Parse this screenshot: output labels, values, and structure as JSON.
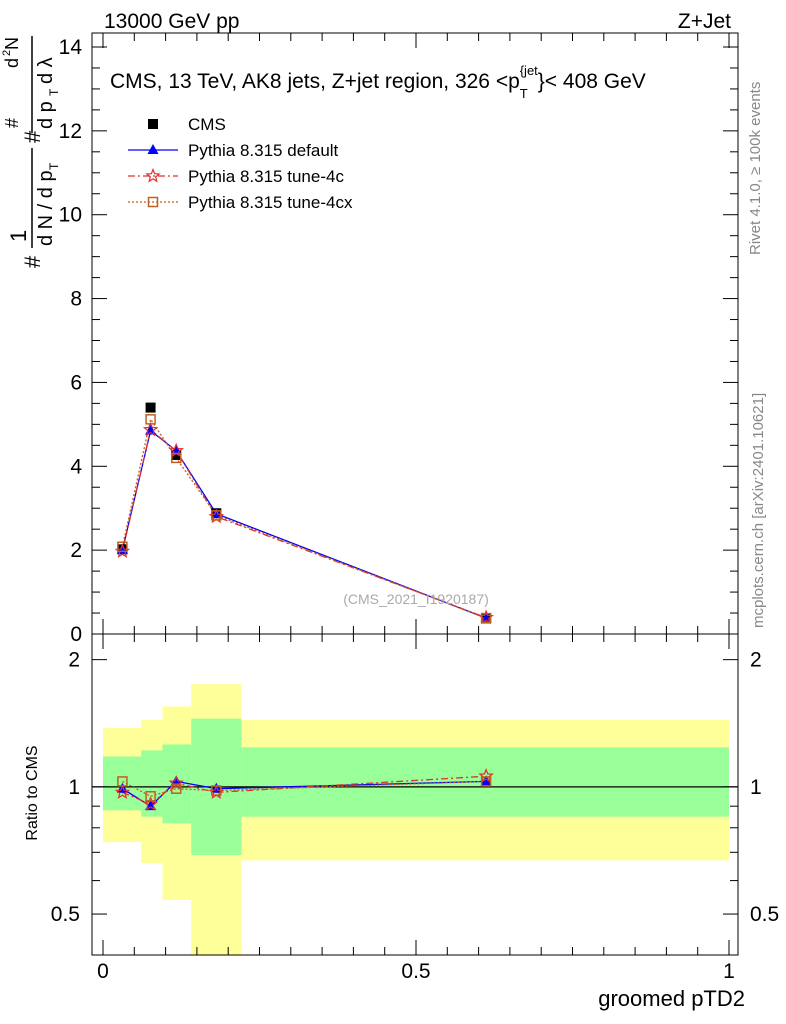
{
  "header": {
    "left": "13000 GeV pp",
    "right": "Z+Jet"
  },
  "side_labels": {
    "rivet": "Rivet 4.1.0, ≥ 100k events",
    "mcplots": "mcplots.cern.ch [arXiv:2401.10621]"
  },
  "watermark": "(CMS_2021_I1920187)",
  "chart_data": [
    {
      "type": "line",
      "panel": "main",
      "title": "CMS, 13 TeV, AK8 jets, Z+jet region, 326 <p_T^{jet}< 408 GeV",
      "ylabel": "1/(dN/dp_T) d²N/(dp_T dλ)",
      "xlim": [
        0,
        1
      ],
      "ylim": [
        0,
        14
      ],
      "y_ticks": [
        0,
        2,
        4,
        6,
        8,
        10,
        12,
        14
      ],
      "x": [
        0.031,
        0.076,
        0.117,
        0.181,
        0.612
      ],
      "series": [
        {
          "name": "CMS",
          "marker": "square",
          "color": "#000000",
          "values": [
            2.02,
            5.4,
            4.27,
            2.88,
            0.37
          ]
        },
        {
          "name": "Pythia 8.315 default",
          "marker": "triangle",
          "color": "#0000ff",
          "values": [
            2.0,
            4.85,
            4.37,
            2.87,
            0.38
          ]
        },
        {
          "name": "Pythia 8.315 tune-4c",
          "marker": "star",
          "color": "#e03030",
          "values": [
            1.97,
            4.87,
            4.37,
            2.8,
            0.39
          ]
        },
        {
          "name": "Pythia 8.315 tune-4cx",
          "marker": "open-square",
          "color": "#c06020",
          "values": [
            2.08,
            5.12,
            4.2,
            2.83,
            0.38
          ]
        }
      ]
    },
    {
      "type": "line",
      "panel": "ratio",
      "ylabel": "Ratio to CMS",
      "xlabel": "groomed pTD2",
      "xlim": [
        0,
        1
      ],
      "ylim": [
        0.4,
        2.3
      ],
      "y_scale": "log",
      "y_ticks": [
        0.5,
        1,
        2
      ],
      "x_ticks": [
        0,
        0.5,
        1
      ],
      "bins": [
        {
          "lo": 0.0,
          "hi": 0.061,
          "green": [
            0.88,
            1.18
          ],
          "yellow": [
            0.74,
            1.38
          ]
        },
        {
          "lo": 0.061,
          "hi": 0.095,
          "green": [
            0.85,
            1.22
          ],
          "yellow": [
            0.66,
            1.44
          ]
        },
        {
          "lo": 0.095,
          "hi": 0.141,
          "green": [
            0.82,
            1.26
          ],
          "yellow": [
            0.54,
            1.55
          ]
        },
        {
          "lo": 0.141,
          "hi": 0.221,
          "green": [
            0.69,
            1.45
          ],
          "yellow": [
            0.3,
            1.75
          ]
        },
        {
          "lo": 0.221,
          "hi": 1.0,
          "green": [
            0.85,
            1.24
          ],
          "yellow": [
            0.67,
            1.44
          ]
        }
      ],
      "x": [
        0.031,
        0.076,
        0.117,
        0.181,
        0.612
      ],
      "series": [
        {
          "name": "Pythia 8.315 default",
          "color": "#0000ff",
          "values": [
            0.99,
            0.9,
            1.03,
            0.99,
            1.03
          ]
        },
        {
          "name": "Pythia 8.315 tune-4c",
          "color": "#e03030",
          "values": [
            0.97,
            0.91,
            1.02,
            0.97,
            1.06
          ]
        },
        {
          "name": "Pythia 8.315 tune-4cx",
          "color": "#c06020",
          "values": [
            1.03,
            0.95,
            0.99,
            0.98,
            1.03
          ]
        }
      ]
    }
  ]
}
